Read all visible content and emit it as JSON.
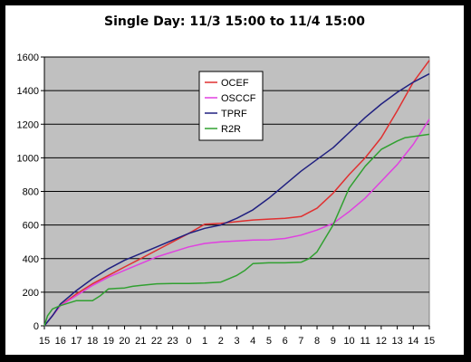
{
  "chart_data": {
    "type": "line",
    "title": "Single Day: 11/3 15:00 to 11/4 15:00",
    "xlabel": "",
    "ylabel": "",
    "ylim": [
      0,
      1600
    ],
    "yticks": [
      0,
      200,
      400,
      600,
      800,
      1000,
      1200,
      1400,
      1600
    ],
    "xlim": [
      0,
      24
    ],
    "x_tick_labels": [
      "15",
      "16",
      "17",
      "18",
      "19",
      "20",
      "21",
      "22",
      "23",
      "0",
      "1",
      "2",
      "3",
      "4",
      "5",
      "6",
      "7",
      "8",
      "9",
      "10",
      "11",
      "12",
      "13",
      "14",
      "15"
    ],
    "grid": "horizontal",
    "legend": "top-center",
    "plot_background": "#c0c0c0",
    "series": [
      {
        "name": "OCEF",
        "color": "#e03030",
        "points": [
          [
            0,
            0
          ],
          [
            0.5,
            60
          ],
          [
            1,
            120
          ],
          [
            2,
            190
          ],
          [
            3,
            250
          ],
          [
            4,
            300
          ],
          [
            5,
            350
          ],
          [
            6,
            400
          ],
          [
            7,
            450
          ],
          [
            8,
            500
          ],
          [
            9,
            550
          ],
          [
            10,
            605
          ],
          [
            11,
            610
          ],
          [
            12,
            620
          ],
          [
            13,
            630
          ],
          [
            14,
            635
          ],
          [
            15,
            640
          ],
          [
            16,
            650
          ],
          [
            17,
            700
          ],
          [
            18,
            790
          ],
          [
            19,
            900
          ],
          [
            20,
            1000
          ],
          [
            21,
            1120
          ],
          [
            22,
            1280
          ],
          [
            23,
            1450
          ],
          [
            24,
            1580
          ]
        ]
      },
      {
        "name": "OSCCF",
        "color": "#e040e0",
        "points": [
          [
            0,
            0
          ],
          [
            0.5,
            60
          ],
          [
            1,
            120
          ],
          [
            2,
            180
          ],
          [
            3,
            240
          ],
          [
            4,
            290
          ],
          [
            5,
            330
          ],
          [
            6,
            370
          ],
          [
            7,
            410
          ],
          [
            8,
            440
          ],
          [
            9,
            470
          ],
          [
            10,
            490
          ],
          [
            11,
            500
          ],
          [
            12,
            505
          ],
          [
            13,
            510
          ],
          [
            14,
            512
          ],
          [
            15,
            520
          ],
          [
            16,
            540
          ],
          [
            17,
            570
          ],
          [
            18,
            610
          ],
          [
            19,
            680
          ],
          [
            20,
            760
          ],
          [
            21,
            860
          ],
          [
            22,
            960
          ],
          [
            23,
            1080
          ],
          [
            24,
            1230
          ]
        ]
      },
      {
        "name": "TPRF",
        "color": "#202080",
        "points": [
          [
            0,
            0
          ],
          [
            0.5,
            60
          ],
          [
            1,
            130
          ],
          [
            2,
            210
          ],
          [
            3,
            280
          ],
          [
            4,
            340
          ],
          [
            5,
            390
          ],
          [
            6,
            430
          ],
          [
            7,
            470
          ],
          [
            8,
            510
          ],
          [
            9,
            550
          ],
          [
            10,
            580
          ],
          [
            11,
            600
          ],
          [
            12,
            640
          ],
          [
            13,
            690
          ],
          [
            14,
            760
          ],
          [
            15,
            840
          ],
          [
            16,
            920
          ],
          [
            17,
            990
          ],
          [
            18,
            1060
          ],
          [
            19,
            1150
          ],
          [
            20,
            1240
          ],
          [
            21,
            1320
          ],
          [
            22,
            1390
          ],
          [
            23,
            1450
          ],
          [
            24,
            1500
          ]
        ]
      },
      {
        "name": "R2R",
        "color": "#30a030",
        "points": [
          [
            0,
            0
          ],
          [
            0.2,
            60
          ],
          [
            0.5,
            100
          ],
          [
            1,
            120
          ],
          [
            2,
            150
          ],
          [
            3,
            150
          ],
          [
            3.5,
            180
          ],
          [
            4,
            220
          ],
          [
            5,
            225
          ],
          [
            5.5,
            235
          ],
          [
            6,
            240
          ],
          [
            7,
            250
          ],
          [
            8,
            252
          ],
          [
            9,
            252
          ],
          [
            10,
            255
          ],
          [
            11,
            260
          ],
          [
            12,
            300
          ],
          [
            12.5,
            330
          ],
          [
            13,
            370
          ],
          [
            14,
            375
          ],
          [
            15,
            375
          ],
          [
            16,
            378
          ],
          [
            16.5,
            400
          ],
          [
            17,
            440
          ],
          [
            18,
            600
          ],
          [
            19,
            820
          ],
          [
            20,
            950
          ],
          [
            21,
            1050
          ],
          [
            22,
            1100
          ],
          [
            22.5,
            1120
          ],
          [
            24,
            1140
          ]
        ]
      }
    ]
  }
}
